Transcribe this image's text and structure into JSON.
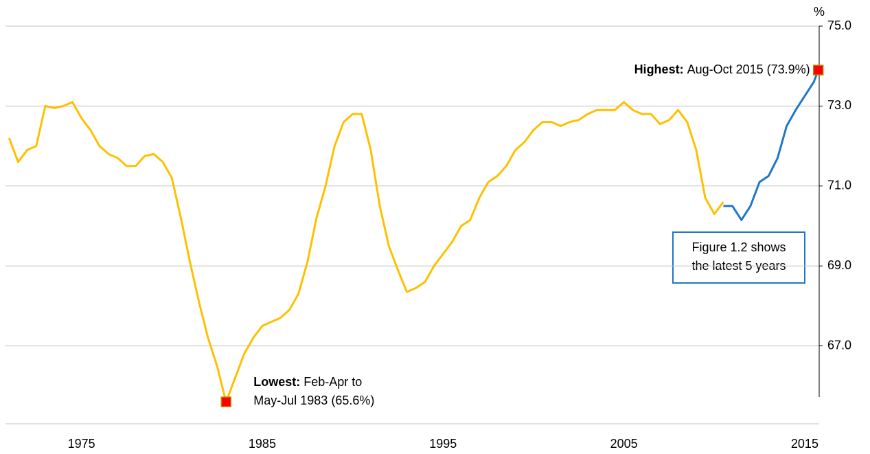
{
  "chart_data": {
    "type": "line",
    "y_unit": "%",
    "x": [
      1971,
      1971.5,
      1972,
      1972.5,
      1973,
      1973.5,
      1974,
      1974.5,
      1975,
      1975.5,
      1976,
      1976.5,
      1977,
      1977.5,
      1978,
      1978.5,
      1979,
      1979.5,
      1980,
      1980.5,
      1981,
      1981.5,
      1982,
      1982.5,
      1983,
      1983.5,
      1984,
      1984.5,
      1985,
      1985.5,
      1986,
      1986.5,
      1987,
      1987.5,
      1988,
      1988.5,
      1989,
      1989.5,
      1990,
      1990.5,
      1991,
      1991.5,
      1992,
      1992.5,
      1993,
      1993.5,
      1994,
      1994.5,
      1995,
      1995.5,
      1996,
      1996.5,
      1997,
      1997.5,
      1998,
      1998.5,
      1999,
      1999.5,
      2000,
      2000.5,
      2001,
      2001.5,
      2002,
      2002.5,
      2003,
      2003.5,
      2004,
      2004.5,
      2005,
      2005.5,
      2006,
      2006.5,
      2007,
      2007.5,
      2008,
      2008.5,
      2009,
      2009.5,
      2010,
      2010.5,
      2011,
      2011.5,
      2012,
      2012.5,
      2013,
      2013.5,
      2014,
      2014.5,
      2015,
      2015.5,
      2015.75
    ],
    "series": [
      {
        "color": "#ffc000",
        "values": [
          72.2,
          71.6,
          71.9,
          72.0,
          73.0,
          72.95,
          73.0,
          73.1,
          72.7,
          72.4,
          72.0,
          71.8,
          71.7,
          71.5,
          71.5,
          71.75,
          71.8,
          71.6,
          71.2,
          70.2,
          69.1,
          68.1,
          67.2,
          66.5,
          65.6,
          66.2,
          66.8,
          67.2,
          67.5,
          67.6,
          67.7,
          67.9,
          68.3,
          69.1,
          70.2,
          71.0,
          72.0,
          72.6,
          72.8,
          72.8,
          71.9,
          70.5,
          69.5,
          68.9,
          68.35,
          68.45,
          68.6,
          69.0,
          69.3,
          69.6,
          70.0,
          70.15,
          70.7,
          71.1,
          71.25,
          71.5,
          71.9,
          72.1,
          72.4,
          72.6,
          72.6,
          72.5,
          72.6,
          72.65,
          72.8,
          72.9,
          72.9,
          72.9,
          73.1,
          72.9,
          72.8,
          72.8,
          72.55,
          72.65,
          72.9,
          72.6,
          71.9,
          70.7,
          70.3,
          70.6,
          null,
          null,
          null,
          null,
          null,
          null,
          null,
          null,
          null,
          null,
          null
        ]
      },
      {
        "color": "#1f77c8",
        "values": [
          null,
          null,
          null,
          null,
          null,
          null,
          null,
          null,
          null,
          null,
          null,
          null,
          null,
          null,
          null,
          null,
          null,
          null,
          null,
          null,
          null,
          null,
          null,
          null,
          null,
          null,
          null,
          null,
          null,
          null,
          null,
          null,
          null,
          null,
          null,
          null,
          null,
          null,
          null,
          null,
          null,
          null,
          null,
          null,
          null,
          null,
          null,
          null,
          null,
          null,
          null,
          null,
          null,
          null,
          null,
          null,
          null,
          null,
          null,
          null,
          null,
          null,
          null,
          null,
          null,
          null,
          null,
          null,
          null,
          null,
          null,
          null,
          null,
          null,
          null,
          null,
          null,
          null,
          null,
          70.5,
          70.5,
          70.15,
          70.5,
          71.1,
          71.25,
          71.7,
          72.5,
          72.9,
          73.25,
          73.6,
          73.9
        ]
      }
    ],
    "xlim": [
      1970.8,
      2015.8
    ],
    "xticks": [
      1975,
      1985,
      1995,
      2005,
      2015
    ],
    "ylim": [
      65,
      75
    ],
    "yticks": [
      {
        "value": 67,
        "label": "67.0"
      },
      {
        "value": 69,
        "label": "69.0"
      },
      {
        "value": 71,
        "label": "71.0"
      },
      {
        "value": 73,
        "label": "73.0"
      },
      {
        "value": 75,
        "label": "75.0"
      }
    ],
    "grid": true,
    "marker_color": "#ff0000",
    "annotations": {
      "highest": {
        "bold": "Highest:",
        "text": "Aug-Oct 2015 (73.9%)",
        "series": 1,
        "index": 90
      },
      "lowest": {
        "bold": "Lowest:",
        "lines": [
          "Feb-Apr to",
          "May-Jul 1983 (65.6%)"
        ],
        "series": 0,
        "index": 24
      },
      "note": {
        "lines": [
          "Figure 1.2 shows",
          "the latest 5 years"
        ]
      }
    }
  }
}
